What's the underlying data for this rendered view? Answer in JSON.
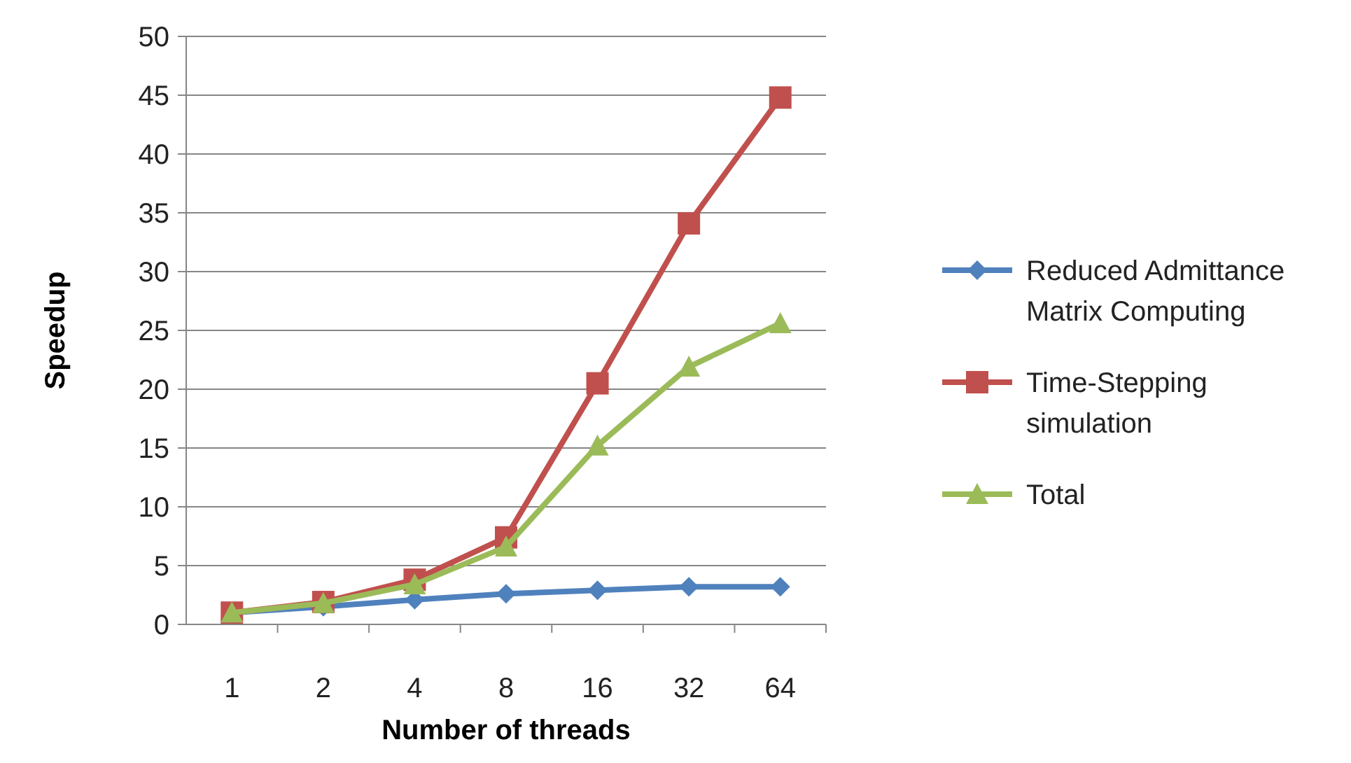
{
  "chart_data": {
    "type": "line",
    "xlabel": "Number of threads",
    "ylabel": "Speedup",
    "categories": [
      "1",
      "2",
      "4",
      "8",
      "16",
      "32",
      "64"
    ],
    "ylim": [
      0,
      50
    ],
    "yticks": [
      0,
      5,
      10,
      15,
      20,
      25,
      30,
      35,
      40,
      45,
      50
    ],
    "grid": "y",
    "legend": "right",
    "line_style": "solid",
    "series": [
      {
        "name": "Reduced Admittance Matrix Computing",
        "color": "#4f81bd",
        "marker": "diamond",
        "values": [
          1,
          1.5,
          2.1,
          2.6,
          2.9,
          3.2,
          3.2
        ]
      },
      {
        "name": "Time-Stepping simulation",
        "color": "#c0504d",
        "marker": "square",
        "values": [
          1,
          1.9,
          3.8,
          7.4,
          20.5,
          34.1,
          44.8
        ]
      },
      {
        "name": "Total",
        "color": "#9bbb59",
        "marker": "triangle",
        "values": [
          1,
          1.8,
          3.4,
          6.6,
          15.2,
          21.9,
          25.6
        ]
      }
    ]
  }
}
